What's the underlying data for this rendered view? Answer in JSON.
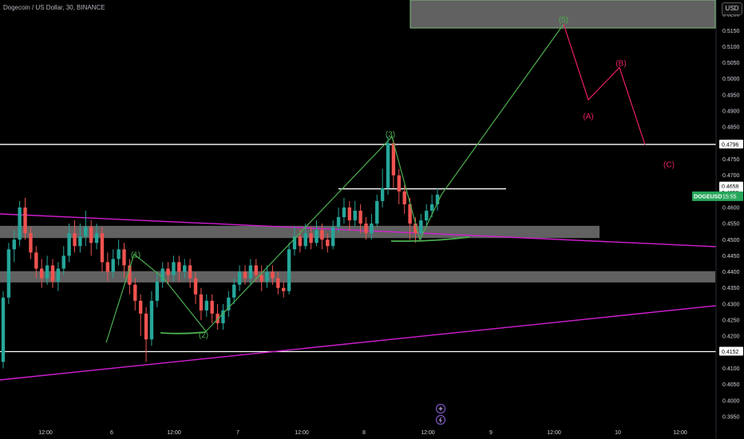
{
  "title": "Dogecoin / US Dollar, 30, BINANCE",
  "currency_button": "USD",
  "colors": {
    "background": "#000000",
    "candle_up": "#26a69a",
    "candle_down": "#ef5350",
    "wave_line": "#4caf50",
    "correction_line": "#e91e63",
    "trend_line": "#d21fd2",
    "zone_fill": "#b0b0b0",
    "level_line": "#ffffff",
    "price_badge": "#26a65b"
  },
  "chart_data": {
    "type": "candlestick",
    "symbol": "DOGEUSD",
    "timeframe": "30",
    "exchange": "BINANCE",
    "y_range": [
      0.3925,
      0.5245
    ],
    "y_ticks": [
      "0.5200",
      "0.5150",
      "0.5100",
      "0.5050",
      "0.5000",
      "0.4950",
      "0.4900",
      "0.4850",
      "0.4750",
      "0.4700",
      "0.4650",
      "0.4600",
      "0.4550",
      "0.4500",
      "0.4450",
      "0.4400",
      "0.4350",
      "0.4300",
      "0.4250",
      "0.4200",
      "0.4150",
      "0.4100",
      "0.4050",
      "0.4000",
      "0.3950"
    ],
    "x_ticks": [
      "12:00",
      "6",
      "12:00",
      "7",
      "12:00",
      "8",
      "12:00",
      "9",
      "12:00",
      "10",
      "12:00"
    ],
    "price_labels": [
      {
        "value": "0.4796",
        "kind": "level"
      },
      {
        "value": "0.4658",
        "kind": "level"
      },
      {
        "value": "0.4653",
        "kind": "level"
      },
      {
        "value": "0.4152",
        "kind": "level"
      }
    ],
    "current_price": {
      "symbol": "DOGEUSD",
      "countdown": "15:55"
    },
    "horizontal_levels": [
      0.4796,
      0.4152,
      0.4658
    ],
    "zones": [
      [
        0.5158,
        0.5245
      ],
      [
        0.4505,
        0.4543
      ],
      [
        0.4367,
        0.4402
      ]
    ],
    "trendlines": [
      {
        "from": [
          "day5 00:00",
          0.4628
        ],
        "to": [
          "day10 20:00",
          0.4485
        ]
      },
      {
        "from": [
          "day5 00:00",
          0.4055
        ],
        "to": [
          "day10 20:00",
          0.4295
        ]
      }
    ],
    "wave_labels": [
      {
        "text": "(1)",
        "price": 0.4455,
        "color": "#4caf50"
      },
      {
        "text": "(2)",
        "price": 0.4205,
        "color": "#4caf50"
      },
      {
        "text": "(3)",
        "price": 0.483,
        "color": "#4caf50"
      },
      {
        "text": "(5)",
        "price": 0.5185,
        "color": "#4caf50"
      },
      {
        "text": "(A)",
        "price": 0.4885,
        "color": "#e91e63"
      },
      {
        "text": "(B)",
        "price": 0.505,
        "color": "#e91e63"
      },
      {
        "text": "(C)",
        "price": 0.4735,
        "color": "#e91e63"
      }
    ],
    "wave_path": [
      [
        0.418
      ],
      [
        0.4455
      ],
      [
        0.438
      ],
      [
        0.4215
      ],
      [
        0.482
      ],
      [
        0.45
      ],
      [
        0.464
      ],
      [
        0.517
      ]
    ],
    "correction_path": [
      [
        0.517
      ],
      [
        0.4935
      ],
      [
        0.5035
      ],
      [
        0.4795
      ]
    ],
    "series": [
      {
        "ohlc": [
          [
            0.412,
            0.432,
            0.41,
            0.434
          ],
          [
            0.432,
            0.447,
            0.43,
            0.449
          ],
          [
            0.447,
            0.45,
            0.443,
            0.453
          ],
          [
            0.45,
            0.46,
            0.448,
            0.462
          ],
          [
            0.46,
            0.452,
            0.45,
            0.463
          ],
          [
            0.452,
            0.446,
            0.444,
            0.454
          ],
          [
            0.446,
            0.441,
            0.438,
            0.448
          ],
          [
            0.441,
            0.438,
            0.435,
            0.444
          ],
          [
            0.438,
            0.442,
            0.436,
            0.445
          ],
          [
            0.442,
            0.437,
            0.435,
            0.444
          ],
          [
            0.437,
            0.441,
            0.434,
            0.443
          ],
          [
            0.441,
            0.445,
            0.439,
            0.448
          ],
          [
            0.445,
            0.452,
            0.443,
            0.455
          ],
          [
            0.452,
            0.448,
            0.446,
            0.456
          ],
          [
            0.448,
            0.451,
            0.446,
            0.455
          ],
          [
            0.451,
            0.454,
            0.448,
            0.459
          ],
          [
            0.454,
            0.449,
            0.445,
            0.456
          ],
          [
            0.449,
            0.452,
            0.447,
            0.455
          ],
          [
            0.452,
            0.443,
            0.44,
            0.454
          ],
          [
            0.443,
            0.44,
            0.437,
            0.446
          ],
          [
            0.44,
            0.444,
            0.438,
            0.447
          ],
          [
            0.444,
            0.447,
            0.442,
            0.45
          ],
          [
            0.447,
            0.442,
            0.438,
            0.449
          ],
          [
            0.442,
            0.436,
            0.433,
            0.444
          ],
          [
            0.436,
            0.431,
            0.428,
            0.438
          ],
          [
            0.431,
            0.427,
            0.42,
            0.433
          ],
          [
            0.427,
            0.419,
            0.412,
            0.429
          ],
          [
            0.419,
            0.431,
            0.417,
            0.434
          ],
          [
            0.431,
            0.437,
            0.429,
            0.44
          ],
          [
            0.437,
            0.441,
            0.435,
            0.443
          ],
          [
            0.441,
            0.439,
            0.436,
            0.443
          ],
          [
            0.439,
            0.443,
            0.437,
            0.445
          ],
          [
            0.443,
            0.44,
            0.437,
            0.445
          ],
          [
            0.44,
            0.442,
            0.438,
            0.444
          ],
          [
            0.442,
            0.438,
            0.435,
            0.444
          ],
          [
            0.438,
            0.433,
            0.43,
            0.44
          ],
          [
            0.433,
            0.428,
            0.425,
            0.435
          ],
          [
            0.428,
            0.431,
            0.426,
            0.433
          ],
          [
            0.431,
            0.427,
            0.424,
            0.433
          ],
          [
            0.427,
            0.424,
            0.422,
            0.43
          ],
          [
            0.424,
            0.428,
            0.422,
            0.43
          ],
          [
            0.428,
            0.432,
            0.426,
            0.434
          ],
          [
            0.432,
            0.436,
            0.43,
            0.438
          ],
          [
            0.436,
            0.44,
            0.434,
            0.442
          ],
          [
            0.44,
            0.438,
            0.436,
            0.442
          ],
          [
            0.438,
            0.442,
            0.436,
            0.444
          ],
          [
            0.442,
            0.439,
            0.437,
            0.444
          ],
          [
            0.439,
            0.437,
            0.434,
            0.442
          ],
          [
            0.437,
            0.44,
            0.435,
            0.442
          ],
          [
            0.44,
            0.438,
            0.436,
            0.442
          ],
          [
            0.438,
            0.435,
            0.433,
            0.44
          ],
          [
            0.435,
            0.434,
            0.432,
            0.437
          ],
          [
            0.434,
            0.447,
            0.433,
            0.449
          ],
          [
            0.447,
            0.451,
            0.445,
            0.454
          ],
          [
            0.451,
            0.448,
            0.446,
            0.453
          ],
          [
            0.448,
            0.452,
            0.447,
            0.455
          ],
          [
            0.452,
            0.449,
            0.447,
            0.454
          ],
          [
            0.449,
            0.453,
            0.448,
            0.456
          ],
          [
            0.453,
            0.45,
            0.447,
            0.455
          ],
          [
            0.45,
            0.448,
            0.446,
            0.452
          ],
          [
            0.448,
            0.454,
            0.447,
            0.456
          ],
          [
            0.454,
            0.457,
            0.452,
            0.46
          ],
          [
            0.457,
            0.46,
            0.455,
            0.463
          ],
          [
            0.46,
            0.456,
            0.453,
            0.462
          ],
          [
            0.456,
            0.459,
            0.454,
            0.462
          ],
          [
            0.459,
            0.455,
            0.452,
            0.461
          ],
          [
            0.455,
            0.452,
            0.45,
            0.457
          ],
          [
            0.452,
            0.455,
            0.45,
            0.458
          ],
          [
            0.455,
            0.462,
            0.454,
            0.464
          ],
          [
            0.462,
            0.466,
            0.46,
            0.472
          ],
          [
            0.466,
            0.48,
            0.464,
            0.482
          ],
          [
            0.48,
            0.47,
            0.466,
            0.481
          ],
          [
            0.47,
            0.465,
            0.461,
            0.472
          ],
          [
            0.465,
            0.461,
            0.458,
            0.467
          ],
          [
            0.461,
            0.455,
            0.45,
            0.463
          ],
          [
            0.455,
            0.452,
            0.449,
            0.457
          ],
          [
            0.452,
            0.456,
            0.45,
            0.458
          ],
          [
            0.456,
            0.459,
            0.454,
            0.461
          ],
          [
            0.459,
            0.461,
            0.457,
            0.464
          ],
          [
            0.461,
            0.464,
            0.459,
            0.466
          ]
        ]
      }
    ]
  }
}
